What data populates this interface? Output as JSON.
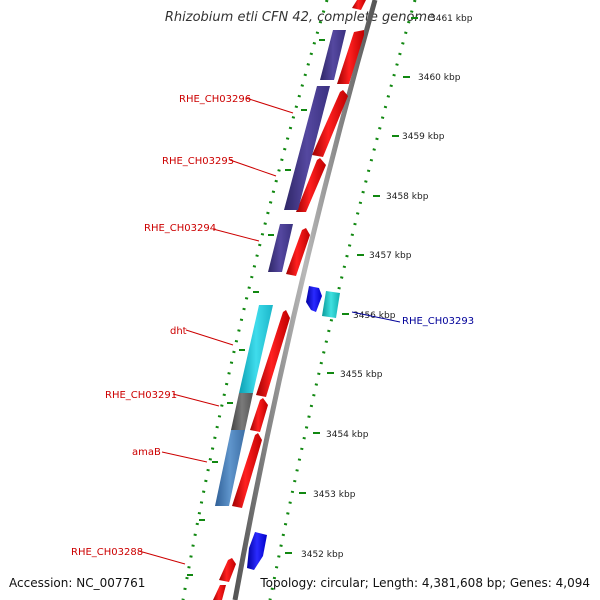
{
  "title": "Rhizobium etli CFN 42, complete genome",
  "accession_text": "Accession: NC_007761",
  "summary_text": "Topology: circular; Length: 4,381,608 bp; Genes: 4,094",
  "ruler": {
    "ticks": [
      "3461 kbp",
      "3460 kbp",
      "3459 kbp",
      "3458 kbp",
      "3457 kbp",
      "3456 kbp",
      "3455 kbp",
      "3454 kbp",
      "3453 kbp",
      "3452 kbp"
    ]
  },
  "gene_labels": [
    {
      "text": "RHE_CH03296",
      "color": "#cc0000"
    },
    {
      "text": "RHE_CH03295",
      "color": "#cc0000"
    },
    {
      "text": "RHE_CH03294",
      "color": "#cc0000"
    },
    {
      "text": "dht",
      "color": "#cc0000"
    },
    {
      "text": "RHE_CH03291",
      "color": "#cc0000"
    },
    {
      "text": "amaB",
      "color": "#cc0000"
    },
    {
      "text": "RHE_CH03288",
      "color": "#cc0000"
    },
    {
      "text": "RHE_CH03293",
      "color": "#000099"
    }
  ],
  "colors": {
    "cds_forward": "#ff0000",
    "cds_reverse": "#0000ff",
    "feature_purple": "#4b3f8f",
    "feature_cyan": "#1ec8d8",
    "feature_gray": "#666666",
    "feature_steelblue": "#4a7fb8",
    "backbone": "#888888",
    "ruler_dots": "#118811",
    "label_red": "#cc0000",
    "label_blue": "#000099"
  }
}
